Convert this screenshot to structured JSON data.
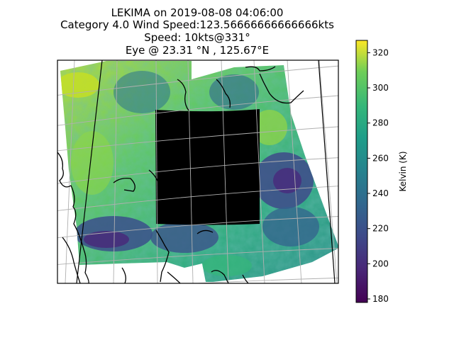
{
  "title_lines": [
    "LEKIMA on 2019-08-08 04:06:00",
    "Category 4.0 Wind Speed:123.56666666666666kts",
    "Speed: 10kts@331°",
    "Eye @ 23.31 °N , 125.67°E"
  ],
  "chart_data": {
    "type": "heatmap",
    "title": "LEKIMA on 2019-08-08 04:06:00",
    "colormap": "viridis",
    "colorbar": {
      "label": "Kelvin (K)",
      "range": [
        178,
        327
      ],
      "ticks": [
        180,
        200,
        220,
        240,
        260,
        280,
        300,
        320
      ],
      "tick_labels": [
        "180",
        "200",
        "220",
        "240",
        "260",
        "280",
        "300",
        "320"
      ]
    },
    "map": {
      "projection": "conic",
      "gridlines": true,
      "coastlines": true,
      "no_data_block": "black"
    },
    "storm": {
      "name": "LEKIMA",
      "datetime": "2019-08-08 04:06:00",
      "category": 4.0,
      "wind_speed_kts": 123.56666666666666,
      "motion_speed_kts": 10,
      "motion_heading_deg": 331,
      "eye_lat": 23.31,
      "eye_lon": 125.67
    }
  }
}
